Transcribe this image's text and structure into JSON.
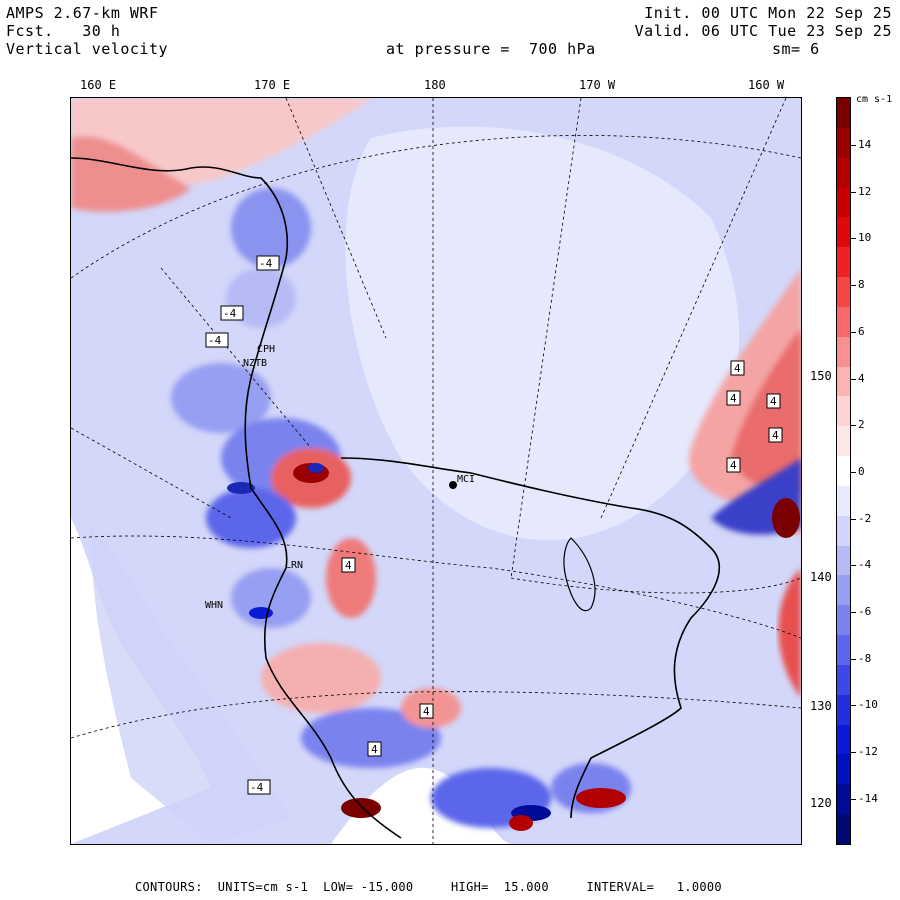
{
  "header": {
    "model": "AMPS 2.67-km WRF",
    "fcst": "Fcst.   30 h",
    "field": "Vertical velocity",
    "init": "Init. 00 UTC Mon 22 Sep 25",
    "valid": "Valid. 06 UTC Tue 23 Sep 25",
    "pressure": "at pressure =  700 hPa",
    "smoothing": "sm= 6"
  },
  "longitude_labels": [
    "160 E",
    "170 E",
    "180",
    "170 W",
    "160 W"
  ],
  "latitude_labels": [
    "150 W",
    "140 W",
    "130 W",
    "120 W"
  ],
  "stations": [
    "CPH",
    "NZTB",
    "MCI",
    "LRN",
    "WHN"
  ],
  "contour_box_value": "4",
  "contour_box_neg_value": "-4",
  "colorbar": {
    "unit": "cm s-1",
    "labels": [
      "14",
      "12",
      "10",
      "8",
      "6",
      "4",
      "2",
      "0",
      "-2",
      "-4",
      "-6",
      "-8",
      "-10",
      "-12",
      "-14"
    ],
    "colors": [
      "#7a0000",
      "#9b0000",
      "#b30000",
      "#c80000",
      "#dc0a0a",
      "#ee2222",
      "#f54545",
      "#f86a6a",
      "#f99090",
      "#fbb3b3",
      "#fcd3d3",
      "#fde8e8",
      "#ffffff",
      "#e9eafc",
      "#d2d5fa",
      "#b6bbf6",
      "#979ff2",
      "#7a82ee",
      "#5c66ea",
      "#3c49e4",
      "#2130df",
      "#0a1bd8",
      "#0012bd",
      "#000c98",
      "#000875"
    ]
  },
  "footer": {
    "text": "CONTOURS:  UNITS=cm s-1  LOW= -15.000     HIGH=  15.000     INTERVAL=   1.0000"
  },
  "colors": {
    "background_field": "#d7dbf8",
    "ice_shelf": "#e2e5fb",
    "land_white": "#ffffff",
    "positive": "#f4a0a0",
    "negative": "#7f89ee"
  }
}
